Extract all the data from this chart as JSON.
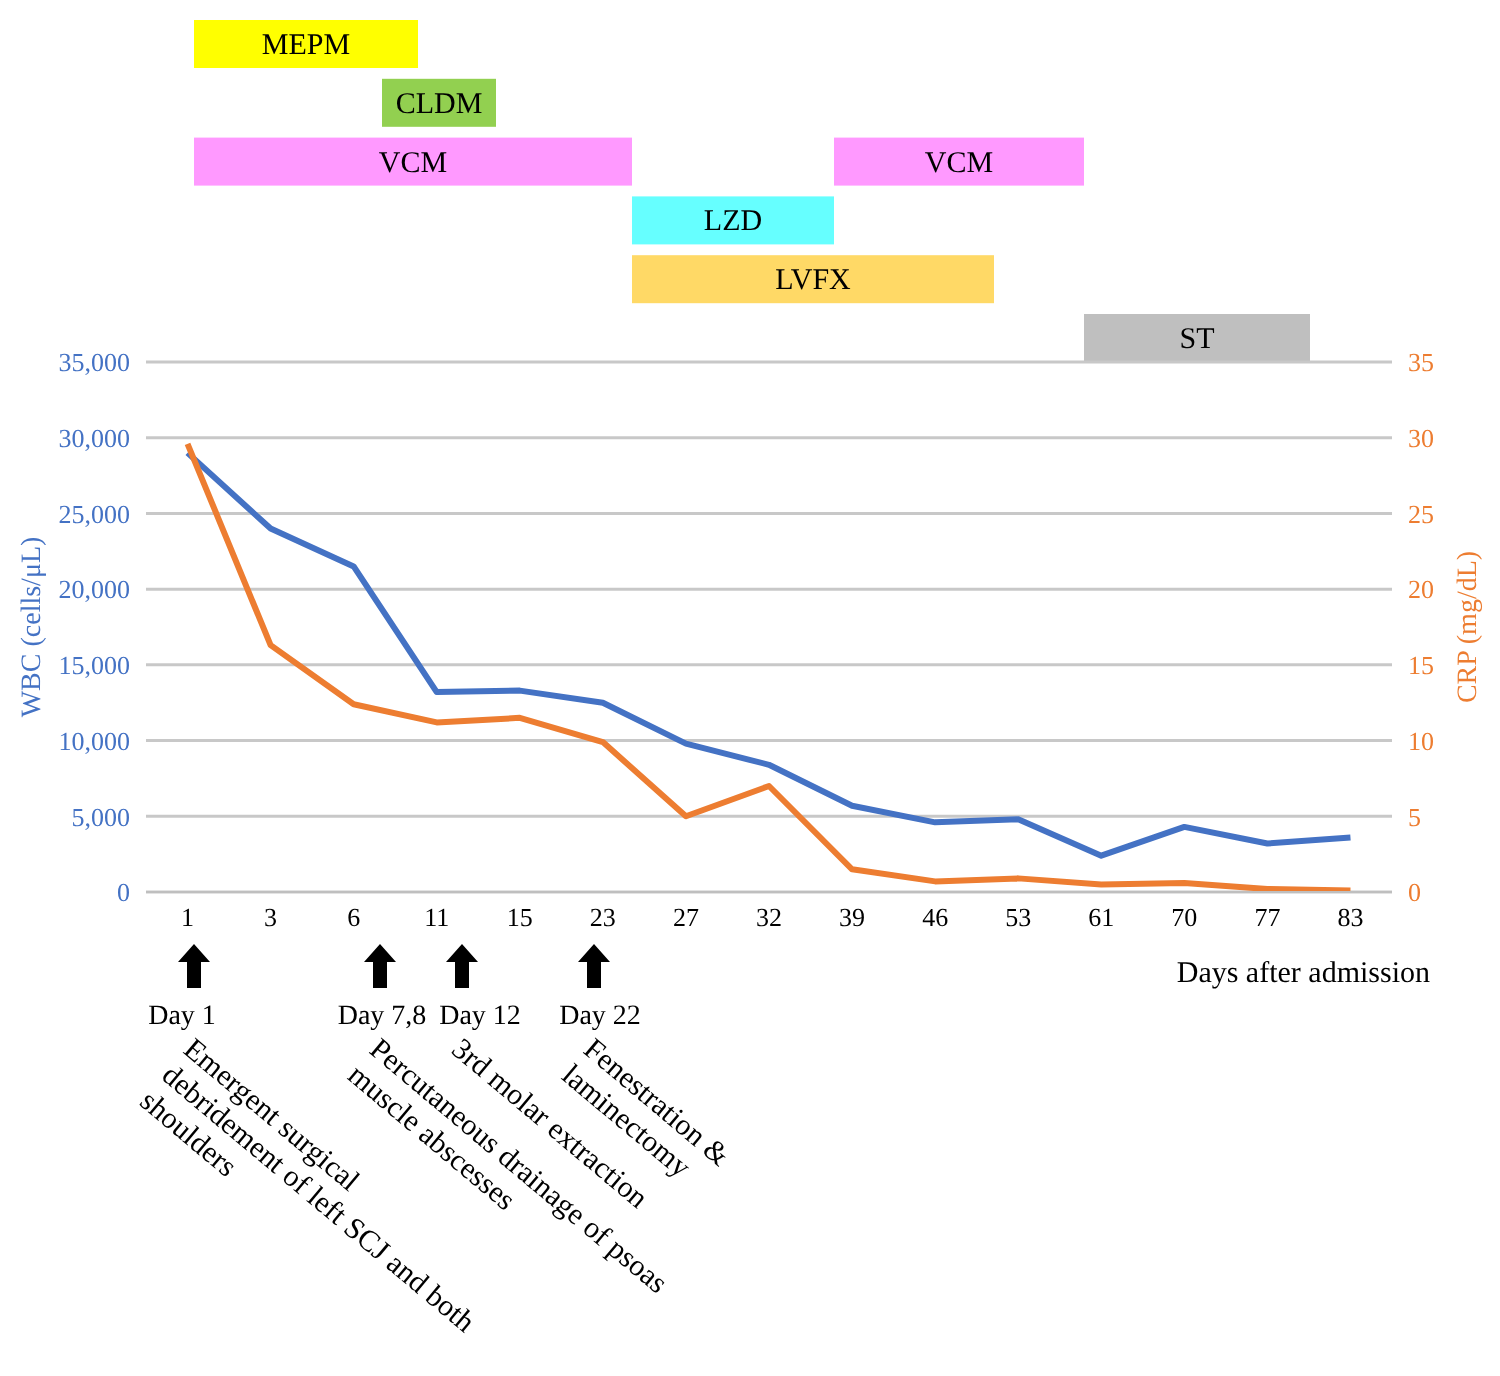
{
  "chart_data": [
    {
      "type": "other",
      "categories": [
        "MEPM",
        "CLDM",
        "VCM",
        "VCM",
        "LZD",
        "LVFX",
        "ST"
      ],
      "colors": [
        "#ffff00",
        "#92d050",
        "#ff99ff",
        "#ff99ff",
        "#66ffff",
        "#ffd966",
        "#bfbfbf"
      ]
    },
    {
      "type": "line",
      "categories": [
        "1",
        "3",
        "6",
        "11",
        "15",
        "23",
        "27",
        "32",
        "39",
        "46",
        "53",
        "61",
        "70",
        "77",
        "83"
      ],
      "series": [
        {
          "type": "line",
          "color": "#4472c4",
          "values": [
            29000,
            24000,
            21500,
            13200,
            13300,
            12500,
            9800,
            8400,
            5700,
            4600,
            4800,
            2400,
            4300,
            3200,
            3600
          ]
        },
        {
          "type": "line",
          "color": "#ed7d31",
          "axis": "y2",
          "values": [
            29.6,
            16.3,
            12.4,
            11.2,
            11.5,
            9.9,
            5.0,
            7.0,
            1.5,
            0.7,
            0.9,
            0.5,
            0.6,
            0.2,
            0.1
          ]
        }
      ],
      "xlabel": "Days after admission",
      "ylabel": "WBC (cells/μL)",
      "y2label": "CRP (mg/dL)",
      "ylim": [
        0,
        35000
      ],
      "yticks": [
        {
          "value": 0,
          "label": "0"
        },
        {
          "value": 5000,
          "label": "5,000"
        },
        {
          "value": 10000,
          "label": "10,000"
        },
        {
          "value": 15000,
          "label": "15,000"
        },
        {
          "value": 20000,
          "label": "20,000"
        },
        {
          "value": 25000,
          "label": "25,000"
        },
        {
          "value": 30000,
          "label": "30,000"
        },
        {
          "value": 35000,
          "label": "35,000"
        }
      ],
      "y2lim": [
        0,
        35
      ],
      "y2ticks": [
        0,
        5,
        10,
        15,
        20,
        25,
        30,
        35
      ],
      "grid": "y",
      "annotations": [
        "Day 1",
        "Emergent surgical\ndebridement of left SCJ and both\nshoulders",
        "Day 7,8",
        "Percutaneous drainage of psoas\nmuscle abscesses",
        "Day 12",
        "3rd molar extraction",
        "Day 22",
        "Fenestration &\nlaminectomy"
      ]
    }
  ]
}
